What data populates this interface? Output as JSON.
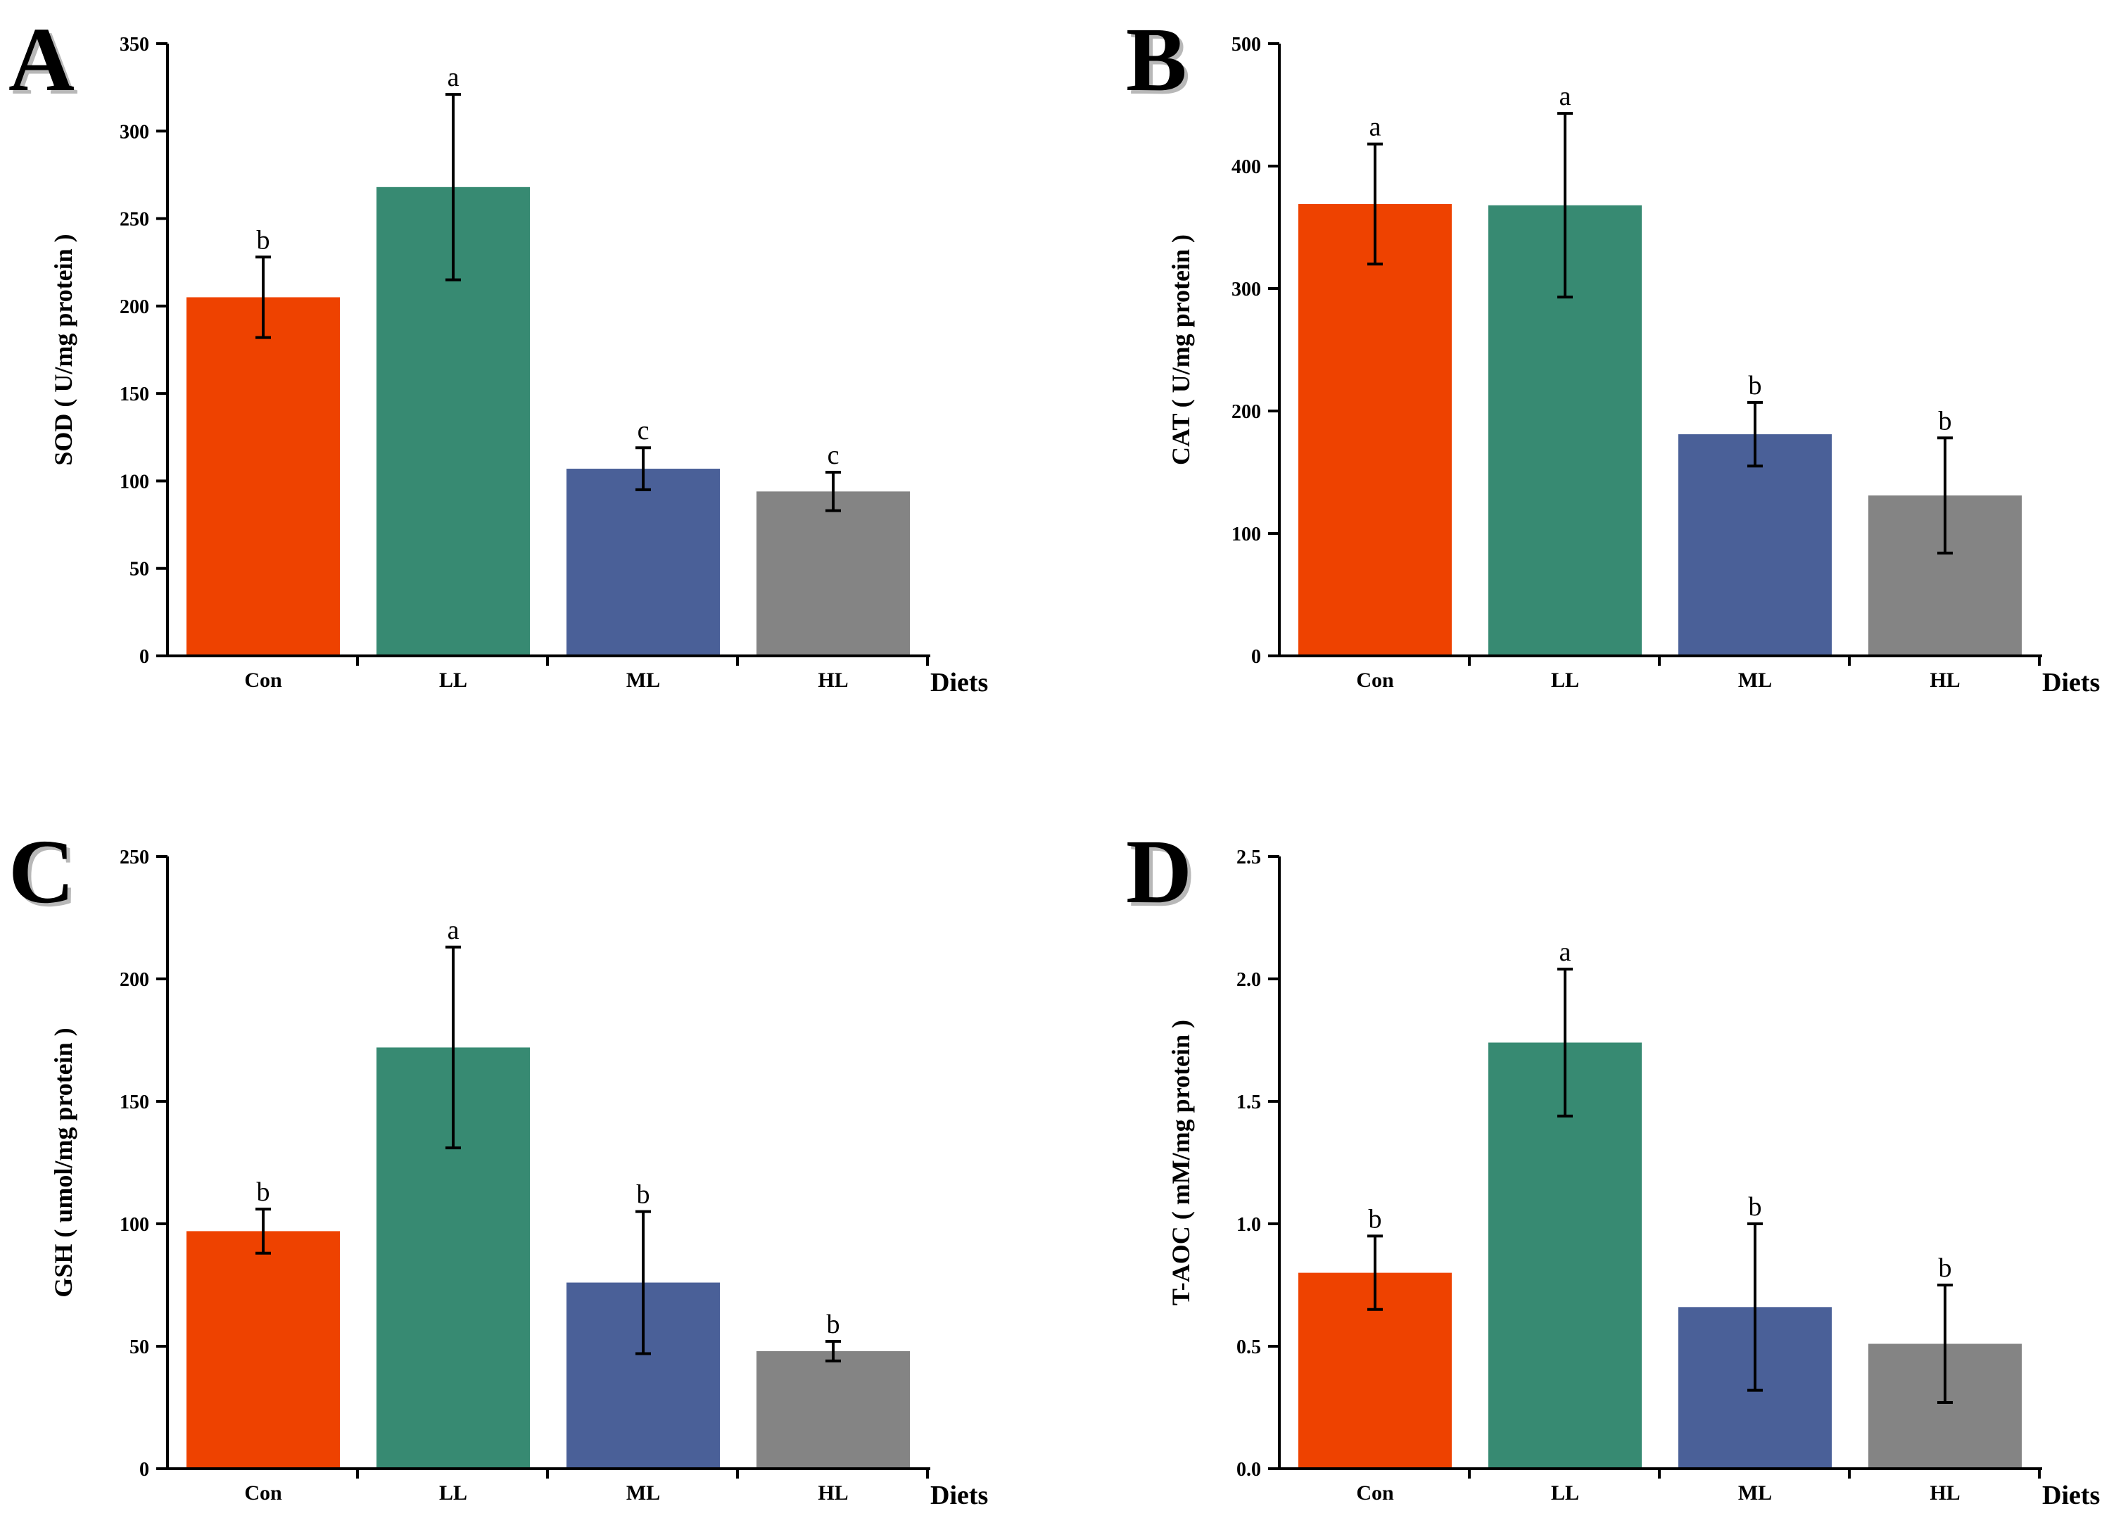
{
  "chart_data": [
    {
      "panel": "A",
      "type": "bar",
      "categories": [
        "Con",
        "LL",
        "ML",
        "HL"
      ],
      "values": [
        205,
        268,
        107,
        94
      ],
      "errors": [
        23,
        53,
        12,
        11
      ],
      "significance": [
        "b",
        "a",
        "c",
        "c"
      ],
      "xlabel": "Diets",
      "ylabel": "SOD ( U/mg protein )",
      "ylim": [
        0,
        350
      ],
      "yticks": [
        0,
        50,
        100,
        150,
        200,
        250,
        300,
        350
      ],
      "ytick_labels": [
        "0",
        "50",
        "100",
        "150",
        "200",
        "250",
        "300",
        "350"
      ]
    },
    {
      "panel": "B",
      "type": "bar",
      "categories": [
        "Con",
        "LL",
        "ML",
        "HL"
      ],
      "values": [
        369,
        368,
        181,
        131
      ],
      "errors": [
        49,
        75,
        26,
        47
      ],
      "significance": [
        "a",
        "a",
        "b",
        "b"
      ],
      "xlabel": "Diets",
      "ylabel": "CAT ( U/mg protein )",
      "ylim": [
        0,
        500
      ],
      "yticks": [
        0,
        100,
        200,
        300,
        400,
        500
      ],
      "ytick_labels": [
        "0",
        "100",
        "200",
        "300",
        "400",
        "500"
      ]
    },
    {
      "panel": "C",
      "type": "bar",
      "categories": [
        "Con",
        "LL",
        "ML",
        "HL"
      ],
      "values": [
        97,
        172,
        76,
        48
      ],
      "errors": [
        9,
        41,
        29,
        4
      ],
      "significance": [
        "b",
        "a",
        "b",
        "b"
      ],
      "xlabel": "Diets",
      "ylabel": "GSH ( umol/mg protein )",
      "ylim": [
        0,
        250
      ],
      "yticks": [
        0,
        50,
        100,
        150,
        200,
        250
      ],
      "ytick_labels": [
        "0",
        "50",
        "100",
        "150",
        "200",
        "250"
      ]
    },
    {
      "panel": "D",
      "type": "bar",
      "categories": [
        "Con",
        "LL",
        "ML",
        "HL"
      ],
      "values": [
        0.8,
        1.74,
        0.66,
        0.51
      ],
      "errors": [
        0.15,
        0.3,
        0.34,
        0.24
      ],
      "significance": [
        "b",
        "a",
        "b",
        "b"
      ],
      "xlabel": "Diets",
      "ylabel": "T-AOC ( mM/mg protein )",
      "ylim": [
        0,
        2.5
      ],
      "yticks": [
        0,
        0.5,
        1.0,
        1.5,
        2.0,
        2.5
      ],
      "ytick_labels": [
        "0.0",
        "0.5",
        "1.0",
        "1.5",
        "2.0",
        "2.5"
      ]
    }
  ],
  "colors": {
    "Con": "#ee4200",
    "LL": "#378a72",
    "ML": "#4a6098",
    "HL": "#848484",
    "axis": "#000000"
  }
}
